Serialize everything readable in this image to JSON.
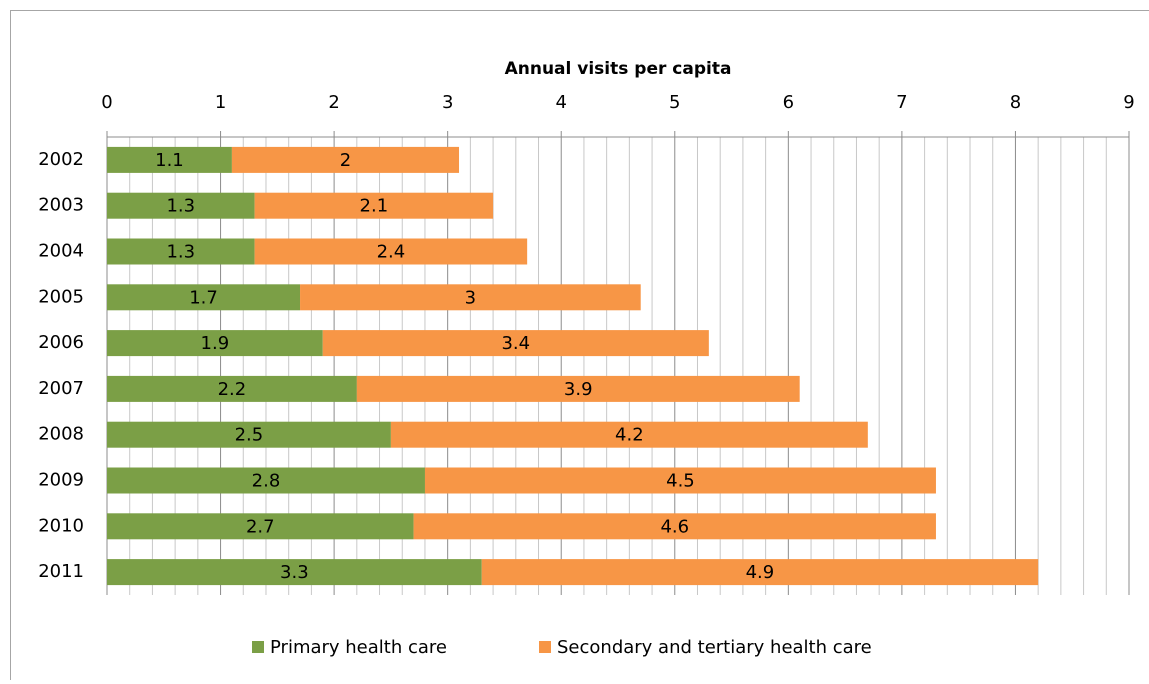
{
  "chart_data": {
    "type": "stacked-barh",
    "x_label": "Annual visits per capita",
    "categories": [
      "2002",
      "2003",
      "2004",
      "2005",
      "2006",
      "2007",
      "2008",
      "2009",
      "2010",
      "2011"
    ],
    "series": [
      {
        "name": "Primary health care",
        "color": "#7b9f46",
        "values": [
          1.1,
          1.3,
          1.3,
          1.7,
          1.9,
          2.2,
          2.5,
          2.8,
          2.7,
          3.3
        ]
      },
      {
        "name": "Secondary and tertiary health care",
        "color": "#f79646",
        "values": [
          2,
          2.1,
          2.4,
          3,
          3.4,
          3.9,
          4.2,
          4.5,
          4.6,
          4.9
        ]
      }
    ],
    "xlim": [
      0,
      9
    ],
    "xticks": [
      0,
      1,
      2,
      3,
      4,
      5,
      6,
      7,
      8,
      9
    ],
    "grid": true,
    "minor_grid": true,
    "data_labels": true,
    "legend": "bottom"
  }
}
